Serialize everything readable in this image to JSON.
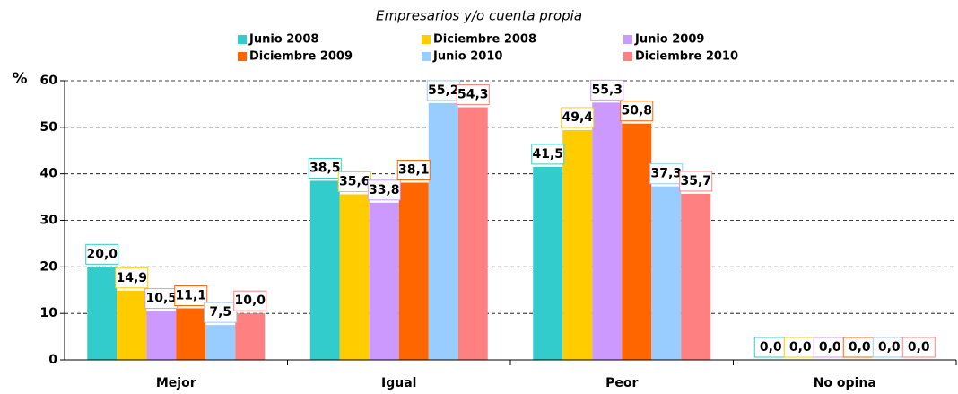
{
  "chart_data": {
    "type": "bar",
    "title": "Empresarios y/o cuenta propia",
    "ylabel": "%",
    "categories": [
      "Mejor",
      "Igual",
      "Peor",
      "No opina"
    ],
    "series": [
      {
        "name": "Junio 2008",
        "color": "#33cccc",
        "values": [
          20.0,
          38.5,
          41.5,
          0.0
        ],
        "value_labels": [
          "20,0",
          "38,5",
          "41,5",
          "0,0"
        ]
      },
      {
        "name": "Diciembre 2008",
        "color": "#ffcc00",
        "values": [
          14.9,
          35.6,
          49.4,
          0.0
        ],
        "value_labels": [
          "14,9",
          "35,6",
          "49,4",
          "0,0"
        ]
      },
      {
        "name": "Junio 2009",
        "color": "#cc99ff",
        "values": [
          10.5,
          33.8,
          55.3,
          0.0
        ],
        "value_labels": [
          "10,5",
          "33,8",
          "55,3",
          "0,0"
        ]
      },
      {
        "name": "Diciembre 2009",
        "color": "#ff6600",
        "values": [
          11.1,
          38.1,
          50.8,
          0.0
        ],
        "value_labels": [
          "11,1",
          "38,1",
          "50,8",
          "0,0"
        ]
      },
      {
        "name": "Junio 2010",
        "color": "#99ccff",
        "values": [
          7.5,
          55.2,
          37.3,
          0.0
        ],
        "value_labels": [
          "7,5",
          "55,2",
          "37,3",
          "0,0"
        ]
      },
      {
        "name": "Diciembre 2010",
        "color": "#ff8080",
        "values": [
          10.0,
          54.3,
          35.7,
          0.0
        ],
        "value_labels": [
          "10,0",
          "54,3",
          "35,7",
          "0,0"
        ]
      }
    ],
    "ylim": [
      0,
      60
    ],
    "yticks": [
      0,
      10,
      20,
      30,
      40,
      50,
      60
    ],
    "grid": true
  }
}
